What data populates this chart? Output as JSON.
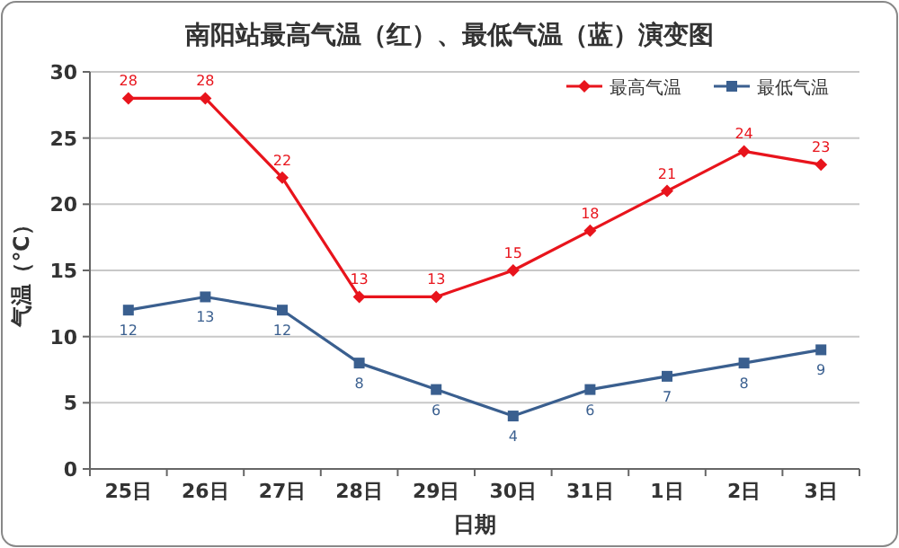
{
  "chart_data": {
    "type": "line",
    "title": "南阳站最高气温（红）、最低气温（蓝）演变图",
    "xlabel": "日期",
    "ylabel": "气温（℃）",
    "categories": [
      "25日",
      "26日",
      "27日",
      "28日",
      "29日",
      "30日",
      "31日",
      "1日",
      "2日",
      "3日"
    ],
    "series": [
      {
        "name": "最高气温",
        "color": "#e8141c",
        "marker": "diamond",
        "values": [
          28,
          28,
          22,
          13,
          13,
          15,
          18,
          21,
          24,
          23
        ]
      },
      {
        "name": "最低气温",
        "color": "#3a5f8f",
        "marker": "square",
        "values": [
          12,
          13,
          12,
          8,
          6,
          4,
          6,
          7,
          8,
          9
        ]
      }
    ],
    "ylim": [
      0,
      30
    ],
    "yticks": [
      0,
      5,
      10,
      15,
      20,
      25,
      30
    ],
    "grid": "y",
    "legend": "top right",
    "data_labels": true
  }
}
